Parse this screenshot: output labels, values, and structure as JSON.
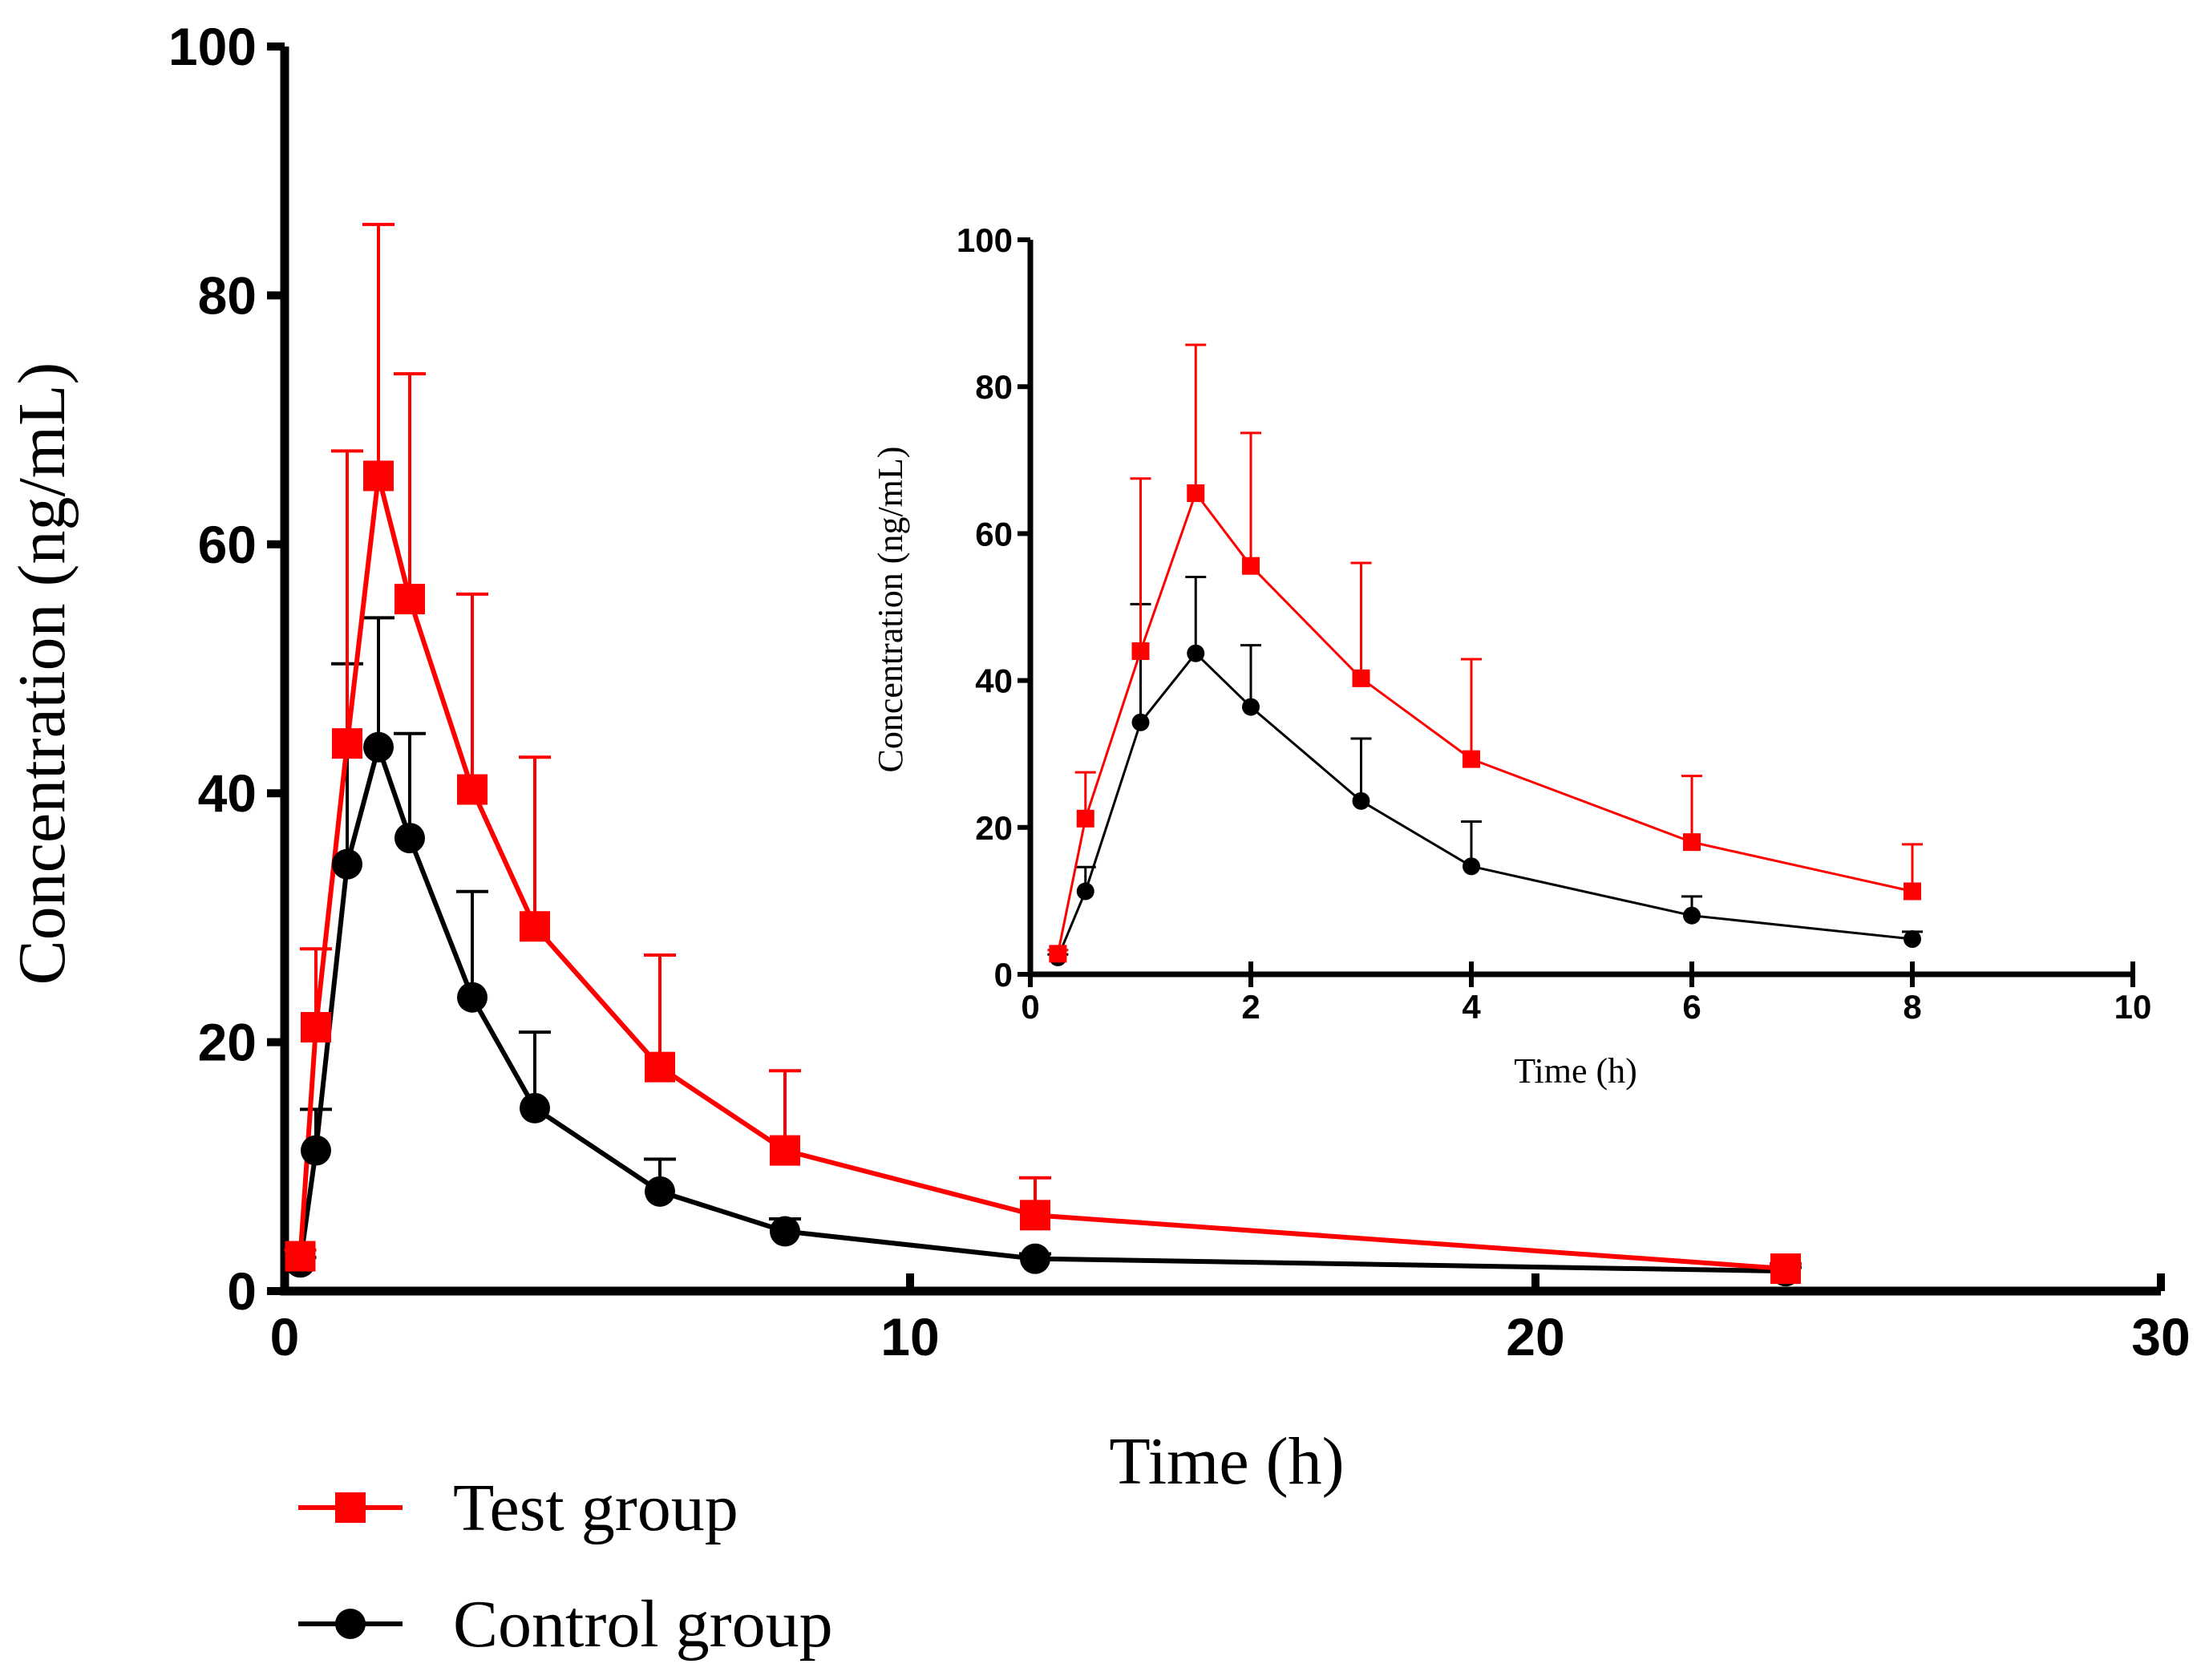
{
  "colors": {
    "test": "#ff0000",
    "control": "#000000",
    "axis": "#000000"
  },
  "legend": [
    {
      "label": "Test group",
      "series": "test",
      "marker": "square"
    },
    {
      "label": "Control group",
      "series": "control",
      "marker": "circle"
    }
  ],
  "chart_data": [
    {
      "id": "main",
      "type": "line",
      "xlabel": "Time (h)",
      "ylabel": "Concentration (ng/mL)",
      "xlim": [
        0,
        30
      ],
      "ylim": [
        0,
        100
      ],
      "xticks": [
        0,
        10,
        20,
        30
      ],
      "yticks": [
        0,
        20,
        40,
        60,
        80,
        100
      ],
      "series": [
        {
          "name": "Test group",
          "key": "test",
          "marker": "square",
          "x": [
            0.25,
            0.5,
            1,
            1.5,
            2,
            3,
            4,
            6,
            8,
            12,
            24
          ],
          "y": [
            2.8,
            21.2,
            44.0,
            65.5,
            55.6,
            40.3,
            29.3,
            18.0,
            11.3,
            6.1,
            1.8
          ],
          "err": [
            0.5,
            6.3,
            23.5,
            20.2,
            18.1,
            15.7,
            13.6,
            9.0,
            6.4,
            3.0,
            0.4
          ]
        },
        {
          "name": "Control group",
          "key": "control",
          "marker": "circle",
          "x": [
            0.25,
            0.5,
            1,
            1.5,
            2,
            3,
            4,
            6,
            8,
            12,
            24
          ],
          "y": [
            2.3,
            11.3,
            34.3,
            43.7,
            36.4,
            23.6,
            14.7,
            8.0,
            4.8,
            2.6,
            1.6
          ],
          "err": [
            0.4,
            3.3,
            16.1,
            10.4,
            8.4,
            8.5,
            6.1,
            2.6,
            1.0,
            0.4,
            0.3
          ]
        }
      ]
    },
    {
      "id": "inset",
      "type": "line",
      "xlabel": "Time (h)",
      "ylabel": "Concentration (ng/mL)",
      "xlim": [
        0,
        10
      ],
      "ylim": [
        0,
        100
      ],
      "xticks": [
        0,
        2,
        4,
        6,
        8,
        10
      ],
      "yticks": [
        0,
        20,
        40,
        60,
        80,
        100
      ],
      "series": [
        {
          "name": "Test group",
          "key": "test",
          "marker": "square",
          "x": [
            0.25,
            0.5,
            1,
            1.5,
            2,
            3,
            4,
            6,
            8
          ],
          "y": [
            2.8,
            21.2,
            44.0,
            65.5,
            55.6,
            40.3,
            29.3,
            18.0,
            11.3
          ],
          "err": [
            0.5,
            6.3,
            23.5,
            20.2,
            18.1,
            15.7,
            13.6,
            9.0,
            6.4
          ]
        },
        {
          "name": "Control group",
          "key": "control",
          "marker": "circle",
          "x": [
            0.25,
            0.5,
            1,
            1.5,
            2,
            3,
            4,
            6,
            8
          ],
          "y": [
            2.3,
            11.3,
            34.3,
            43.7,
            36.4,
            23.6,
            14.7,
            8.0,
            4.8
          ],
          "err": [
            0.4,
            3.3,
            16.1,
            10.4,
            8.4,
            8.5,
            6.1,
            2.6,
            1.0
          ]
        }
      ]
    }
  ]
}
